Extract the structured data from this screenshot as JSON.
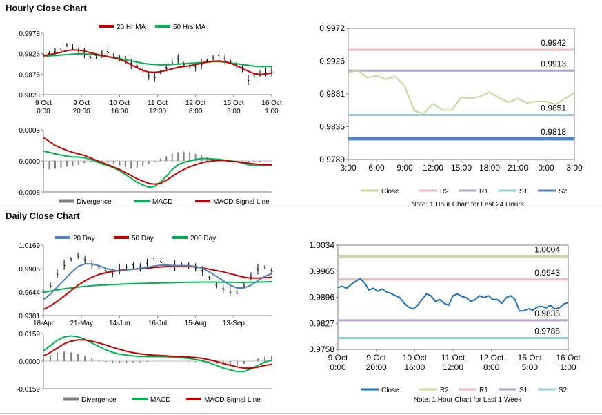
{
  "sections": {
    "hourly_title": "Hourly Close Chart",
    "daily_title": "Daily Close Chart"
  },
  "chart_data": [
    {
      "id": "hourly-price",
      "type": "line",
      "title": "",
      "ylim": [
        0.9823,
        0.9978
      ],
      "yticks": [
        "0.9978",
        "0.9926",
        "0.9875",
        "0.9823"
      ],
      "xticks": [
        "9 Oct\n0:00",
        "9 Oct\n20:00",
        "10 Oct\n16:00",
        "11 Oct\n12:00",
        "12 Oct\n8:00",
        "15 Oct\n5:00",
        "16 Oct\n1:00"
      ],
      "legend": [
        "20 Hr MA",
        "50 Hrs MA"
      ],
      "colors": {
        "price": "#000000",
        "ma20": "#c00000",
        "ma50": "#00b050"
      },
      "series": [
        {
          "name": "Price",
          "values": [
            0.9922,
            0.9925,
            0.993,
            0.9936,
            0.9948,
            0.9942,
            0.9932,
            0.9928,
            0.9918,
            0.992,
            0.9926,
            0.993,
            0.9922,
            0.9915,
            0.991,
            0.99,
            0.9895,
            0.9885,
            0.987,
            0.9868,
            0.988,
            0.989,
            0.9905,
            0.9912,
            0.99,
            0.9895,
            0.9892,
            0.99,
            0.9908,
            0.9915,
            0.992,
            0.9912,
            0.9905,
            0.9898,
            0.989,
            0.986,
            0.987,
            0.9876,
            0.988,
            0.9882
          ]
        },
        {
          "name": "20 Hr MA",
          "values": [
            0.9922,
            0.9924,
            0.9927,
            0.993,
            0.9934,
            0.9936,
            0.9935,
            0.9933,
            0.9929,
            0.9925,
            0.9922,
            0.9919,
            0.9916,
            0.9912,
            0.9906,
            0.9898,
            0.9891,
            0.9884,
            0.988,
            0.9879,
            0.9881,
            0.9884,
            0.9888,
            0.9892,
            0.9894,
            0.9896,
            0.9899,
            0.9902,
            0.9905,
            0.9907,
            0.9908,
            0.9906,
            0.9902,
            0.9896,
            0.9889,
            0.9882,
            0.9876,
            0.9874,
            0.9875,
            0.9878
          ]
        },
        {
          "name": "50 Hrs MA",
          "values": [
            0.992,
            0.9921,
            0.9922,
            0.9923,
            0.9924,
            0.9925,
            0.9926,
            0.9926,
            0.9925,
            0.9923,
            0.9921,
            0.9919,
            0.9917,
            0.9914,
            0.9911,
            0.9908,
            0.9905,
            0.9902,
            0.99,
            0.9899,
            0.9898,
            0.9898,
            0.9899,
            0.99,
            0.9901,
            0.9902,
            0.9903,
            0.9904,
            0.9905,
            0.9906,
            0.9906,
            0.9905,
            0.9903,
            0.9901,
            0.9899,
            0.9897,
            0.9895,
            0.9894,
            0.9894,
            0.9894
          ]
        }
      ]
    },
    {
      "id": "hourly-macd",
      "type": "line",
      "ylim": [
        -0.0008,
        0.0008
      ],
      "yticks": [
        "0.0008",
        "0.0000",
        "-0.0008"
      ],
      "legend": [
        "Divergence",
        "MACD",
        "MACD Signal Line"
      ],
      "colors": {
        "div": "#7f7f7f",
        "macd": "#00b050",
        "signal": "#c00000"
      },
      "series": [
        {
          "name": "Divergence",
          "values": [
            -0.0002,
            -0.00022,
            -0.0002,
            -0.00018,
            -0.00015,
            -0.00014,
            -0.0001,
            -6e-05,
            -4e-05,
            -2e-05,
            -2e-05,
            -5e-05,
            -8e-05,
            -0.00012,
            -0.00016,
            -0.0002,
            -0.00018,
            -0.00014,
            -8e-05,
            -2e-05,
            6e-05,
            0.00012,
            0.00018,
            0.00022,
            0.00024,
            0.00022,
            0.00018,
            0.00014,
            0.0001,
            6e-05,
            3e-05,
            1e-05,
            -1e-05,
            -2e-05,
            -3e-05,
            -4e-05,
            -3e-05,
            -2e-05,
            -1e-05,
            0.0
          ]
        },
        {
          "name": "MACD",
          "values": [
            0.00025,
            0.00022,
            0.00018,
            0.00015,
            0.00012,
            0.0001,
            0.0001,
            8e-05,
            4e-05,
            -2e-05,
            -8e-05,
            -0.00012,
            -0.00018,
            -0.00025,
            -0.00035,
            -0.00045,
            -0.00055,
            -0.00062,
            -0.00068,
            -0.00066,
            -0.00055,
            -0.0004,
            -0.00022,
            -0.0001,
            -4e-05,
            0.0,
            4e-05,
            6e-05,
            6e-05,
            5e-05,
            4e-05,
            2e-05,
            0.0,
            -2e-05,
            -6e-05,
            -0.0001,
            -0.00012,
            -0.00012,
            -0.00011,
            -0.0001
          ]
        },
        {
          "name": "MACD Signal Line",
          "values": [
            0.0006,
            0.0005,
            0.0004,
            0.00033,
            0.00027,
            0.00022,
            0.00018,
            0.00014,
            8e-05,
            2e-05,
            -4e-05,
            -0.0001,
            -0.00016,
            -0.00022,
            -0.0003,
            -0.00038,
            -0.00046,
            -0.00052,
            -0.00058,
            -0.0006,
            -0.00058,
            -0.0005,
            -0.0004,
            -0.0003,
            -0.00022,
            -0.00015,
            -0.0001,
            -5e-05,
            -2e-05,
            0.0,
            1e-05,
            1e-05,
            -1e-05,
            -2e-05,
            -4e-05,
            -6e-05,
            -8e-05,
            -9e-05,
            -0.0001,
            -0.0001
          ]
        }
      ]
    },
    {
      "id": "hourly-levels",
      "type": "line",
      "title": "Note: 1 Hour Chart for Last 24 Hours",
      "ylim": [
        0.9789,
        0.9972
      ],
      "yticks": [
        "0.9972",
        "0.9926",
        "0.9881",
        "0.9835",
        "0.9789"
      ],
      "xticks": [
        "3:00",
        "6:00",
        "9:00",
        "12:00",
        "15:00",
        "18:00",
        "21:00",
        "0:00",
        "3:00"
      ],
      "legend": [
        "Close",
        "R2",
        "R1",
        "S1",
        "S2"
      ],
      "colors": {
        "close": "#c3d69b",
        "r2": "#e6b9b8",
        "r1": "#b3a2c7",
        "s1": "#93cddd",
        "s2": "#4f81bd"
      },
      "levels": [
        {
          "name": "R2",
          "value": 0.9942,
          "label": "0.9942"
        },
        {
          "name": "R1",
          "value": 0.9913,
          "label": "0.9913"
        },
        {
          "name": "S1",
          "value": 0.9851,
          "label": "0.9851"
        },
        {
          "name": "S2",
          "value": 0.9818,
          "label": "0.9818"
        }
      ],
      "series": [
        {
          "name": "Close",
          "values": [
            0.991,
            0.9914,
            0.9903,
            0.9906,
            0.9901,
            0.9905,
            0.9891,
            0.9857,
            0.9853,
            0.9867,
            0.9858,
            0.9858,
            0.9876,
            0.9874,
            0.9877,
            0.9883,
            0.9875,
            0.9869,
            0.9874,
            0.9868,
            0.987,
            0.987,
            0.9866,
            0.9874,
            0.9882
          ]
        }
      ]
    },
    {
      "id": "daily-price",
      "type": "line",
      "ylim": [
        0.9381,
        1.0169
      ],
      "yticks": [
        "1.0169",
        "0.9906",
        "0.9644",
        "0.9381"
      ],
      "xticks": [
        "18-Apr",
        "21-May",
        "14-Jun",
        "16-Jul",
        "15-Aug",
        "13-Sep"
      ],
      "legend": [
        "20 Day",
        "50 Day",
        "200 Day"
      ],
      "colors": {
        "price": "#000000",
        "ma20": "#4f81bd",
        "ma50": "#c00000",
        "ma200": "#00b050"
      },
      "series": [
        {
          "name": "Price",
          "values": [
            0.965,
            0.972,
            0.985,
            0.995,
            1.001,
            1.005,
            1.0,
            0.995,
            0.992,
            0.988,
            0.986,
            0.99,
            0.993,
            0.994,
            0.992,
            0.996,
            1.001,
            0.998,
            0.994,
            0.994,
            0.995,
            0.994,
            0.992,
            0.988,
            0.98,
            0.972,
            0.968,
            0.965,
            0.964,
            0.972,
            0.982,
            0.99,
            0.992,
            0.988
          ]
        },
        {
          "name": "20 Day",
          "values": [
            0.956,
            0.962,
            0.97,
            0.978,
            0.986,
            0.993,
            0.996,
            0.996,
            0.994,
            0.991,
            0.989,
            0.988,
            0.989,
            0.99,
            0.991,
            0.992,
            0.9935,
            0.9945,
            0.9945,
            0.994,
            0.994,
            0.994,
            0.993,
            0.991,
            0.987,
            0.982,
            0.977,
            0.972,
            0.969,
            0.969,
            0.972,
            0.977,
            0.982,
            0.985
          ]
        },
        {
          "name": "50 Day",
          "values": [
            0.945,
            0.949,
            0.954,
            0.96,
            0.966,
            0.972,
            0.977,
            0.981,
            0.984,
            0.986,
            0.9875,
            0.9885,
            0.9895,
            0.99,
            0.9905,
            0.991,
            0.992,
            0.9925,
            0.993,
            0.993,
            0.993,
            0.993,
            0.9925,
            0.9915,
            0.99,
            0.9885,
            0.987,
            0.985,
            0.983,
            0.981,
            0.98,
            0.98,
            0.9805,
            0.981
          ]
        },
        {
          "name": "200 Day",
          "values": [
            0.964,
            0.9655,
            0.9668,
            0.968,
            0.969,
            0.97,
            0.9708,
            0.9715,
            0.972,
            0.9724,
            0.9728,
            0.9732,
            0.9735,
            0.9738,
            0.974,
            0.9742,
            0.9744,
            0.9746,
            0.9748,
            0.975,
            0.9752,
            0.9754,
            0.9755,
            0.9756,
            0.9756,
            0.9755,
            0.9754,
            0.9753,
            0.9752,
            0.9752,
            0.9753,
            0.9755,
            0.9758,
            0.976
          ]
        }
      ]
    },
    {
      "id": "daily-macd",
      "type": "line",
      "ylim": [
        -0.0159,
        0.0159
      ],
      "yticks": [
        "0.0159",
        "0.0000",
        "-0.0159"
      ],
      "legend": [
        "Divergence",
        "MACD",
        "MACD Signal Line"
      ],
      "colors": {
        "div": "#7f7f7f",
        "macd": "#00b050",
        "signal": "#c00000"
      },
      "series": [
        {
          "name": "Divergence",
          "values": [
            0.002,
            0.0035,
            0.005,
            0.0055,
            0.005,
            0.004,
            0.003,
            0.0018,
            0.0006,
            -0.0004,
            -0.001,
            -0.0012,
            -0.001,
            -0.0008,
            -0.0006,
            -0.0004,
            -0.0002,
            0.0,
            0.0,
            -0.0001,
            -0.0002,
            -0.0003,
            -0.0004,
            -0.0006,
            -0.001,
            -0.0016,
            -0.0022,
            -0.0025,
            -0.0025,
            -0.0015,
            0.0,
            0.0015,
            0.0025,
            0.003
          ]
        },
        {
          "name": "MACD",
          "values": [
            0.006,
            0.009,
            0.012,
            0.014,
            0.0145,
            0.014,
            0.0125,
            0.0105,
            0.0085,
            0.0065,
            0.005,
            0.004,
            0.0035,
            0.003,
            0.0028,
            0.0026,
            0.0026,
            0.0026,
            0.0025,
            0.0023,
            0.002,
            0.0016,
            0.001,
            0.0002,
            -0.001,
            -0.0025,
            -0.004,
            -0.005,
            -0.006,
            -0.006,
            -0.0045,
            -0.0025,
            -0.0005,
            0.0005
          ]
        },
        {
          "name": "MACD Signal Line",
          "values": [
            0.003,
            0.005,
            0.0075,
            0.01,
            0.0115,
            0.0122,
            0.0122,
            0.0115,
            0.0105,
            0.0093,
            0.008,
            0.0068,
            0.0057,
            0.0048,
            0.0042,
            0.0037,
            0.0034,
            0.0032,
            0.003,
            0.0028,
            0.0026,
            0.0024,
            0.0021,
            0.0016,
            0.0008,
            -0.0002,
            -0.0013,
            -0.0024,
            -0.0033,
            -0.004,
            -0.004,
            -0.0035,
            -0.0025,
            -0.0018
          ]
        }
      ]
    },
    {
      "id": "daily-levels",
      "type": "line",
      "title": "Note: 1 Hour Chart for Last 1 Week",
      "ylim": [
        0.9758,
        1.0034
      ],
      "yticks": [
        "1.0034",
        "0.9965",
        "0.9896",
        "0.9827",
        "0.9758"
      ],
      "xticks": [
        "9 Oct\n0:00",
        "9 Oct\n20:00",
        "10 Oct\n16:00",
        "11 Oct\n12:00",
        "12 Oct\n8:00",
        "15 Oct\n5:00",
        "16 Oct\n1:00"
      ],
      "legend": [
        "Close",
        "R2",
        "R1",
        "S1",
        "S2"
      ],
      "colors": {
        "close": "#1f6db5",
        "r2": "#c3d69b",
        "r1": "#e6b9b8",
        "s1": "#b3a2c7",
        "s2": "#93cddd"
      },
      "levels": [
        {
          "name": "R2",
          "value": 1.0004,
          "label": "1.0004"
        },
        {
          "name": "R1",
          "value": 0.9943,
          "label": "0.9943"
        },
        {
          "name": "S1",
          "value": 0.9835,
          "label": "0.9835"
        },
        {
          "name": "S2",
          "value": 0.9788,
          "label": "0.9788"
        }
      ],
      "series": [
        {
          "name": "Close",
          "values": [
            0.9922,
            0.9925,
            0.992,
            0.993,
            0.9938,
            0.9945,
            0.9935,
            0.9915,
            0.992,
            0.9912,
            0.9918,
            0.991,
            0.9906,
            0.99,
            0.9895,
            0.988,
            0.987,
            0.9865,
            0.9875,
            0.989,
            0.9905,
            0.99,
            0.9885,
            0.989,
            0.988,
            0.9875,
            0.99,
            0.9905,
            0.9898,
            0.9895,
            0.9885,
            0.989,
            0.99,
            0.9895,
            0.99,
            0.989,
            0.989,
            0.988,
            0.9895,
            0.99,
            0.989,
            0.986,
            0.986,
            0.9866,
            0.9862,
            0.987,
            0.9872,
            0.9868,
            0.9875,
            0.9865,
            0.9868,
            0.9878,
            0.9882
          ]
        }
      ]
    }
  ]
}
